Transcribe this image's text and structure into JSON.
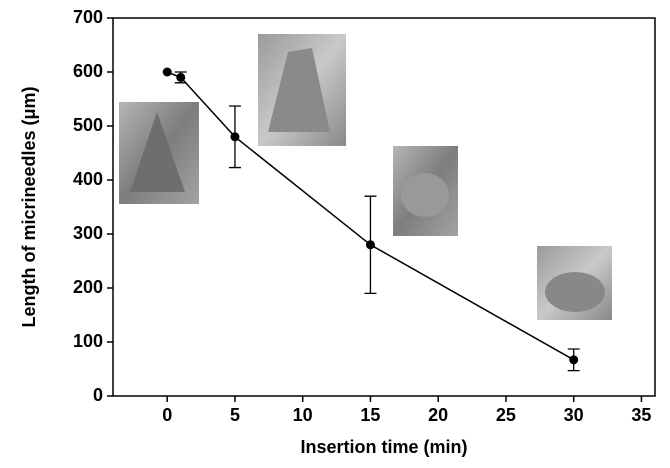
{
  "chart_data": {
    "type": "line",
    "x_label": "Insertion time (min)",
    "y_label": "Length of micrineedles (μm)",
    "x": [
      0,
      1,
      5,
      15,
      30
    ],
    "series": [
      {
        "color": "#000000",
        "values": [
          600,
          590,
          480,
          280,
          67
        ],
        "errors": [
          null,
          10,
          57,
          90,
          20
        ]
      }
    ],
    "xlim": [
      -4,
      36
    ],
    "xticks": [
      0,
      5,
      10,
      15,
      20,
      25,
      30,
      35
    ],
    "ylim": [
      0,
      700
    ],
    "yticks": [
      0,
      100,
      200,
      300,
      400,
      500,
      600,
      700
    ]
  }
}
